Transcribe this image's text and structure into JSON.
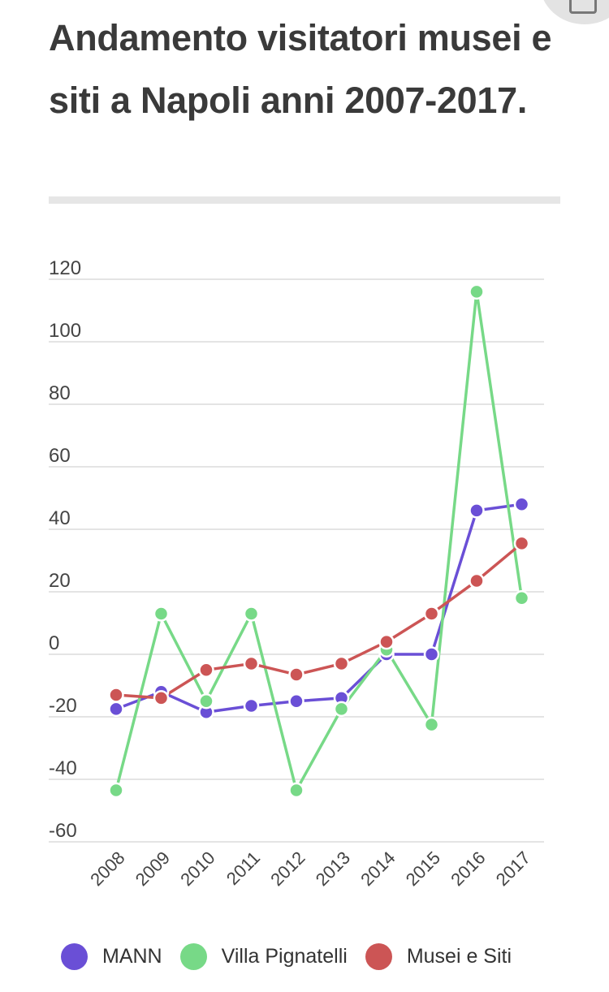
{
  "title": "Andamento visitatori musei e siti a Napoli anni 2007-2017.",
  "colors": {
    "MANN": "#6a4fd6",
    "Villa Pignatelli": "#77d987",
    "Musei e Siti": "#cc5555"
  },
  "chart_data": {
    "type": "line",
    "title": "Andamento visitatori musei e siti a Napoli anni 2007-2017.",
    "xlabel": "",
    "ylabel": "",
    "categories": [
      "2008",
      "2009",
      "2010",
      "2011",
      "2012",
      "2013",
      "2014",
      "2015",
      "2016",
      "2017"
    ],
    "yticks": [
      120,
      100,
      80,
      60,
      40,
      20,
      0,
      -20,
      -40,
      -60
    ],
    "ylim": [
      -60,
      120
    ],
    "grid": true,
    "legend": "bottom",
    "series": [
      {
        "name": "MANN",
        "color": "#6a4fd6",
        "values": [
          -17.5,
          -12,
          -18.5,
          -16.5,
          -15,
          -14,
          0,
          0,
          46,
          48
        ]
      },
      {
        "name": "Villa Pignatelli",
        "color": "#77d987",
        "values": [
          -43.5,
          13,
          -15,
          13,
          -43.5,
          -17.5,
          1.5,
          -22.5,
          116,
          18
        ]
      },
      {
        "name": "Musei e Siti",
        "color": "#cc5555",
        "values": [
          -13,
          -14,
          -5,
          -3,
          -6.5,
          -3,
          4,
          13,
          23.5,
          35.5
        ]
      }
    ]
  }
}
